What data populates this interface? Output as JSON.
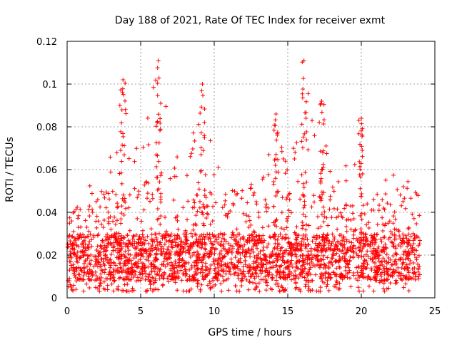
{
  "chart_data": {
    "type": "scatter",
    "title": "Day 188 of 2021, Rate Of TEC Index for receiver exmt",
    "xlabel": "GPS time / hours",
    "ylabel": "ROTI / TECUs",
    "xlim": [
      0,
      25
    ],
    "ylim": [
      0,
      0.12
    ],
    "xticks": [
      0,
      5,
      10,
      15,
      20,
      25
    ],
    "xtick_labels": [
      "0",
      "5",
      "10",
      "15",
      "20",
      "25"
    ],
    "yticks": [
      0,
      0.02,
      0.04,
      0.06,
      0.08,
      0.1,
      0.12
    ],
    "ytick_labels": [
      "0",
      "0.02",
      "0.04",
      "0.06",
      "0.08",
      "0.1",
      "0.12"
    ],
    "grid": true,
    "marker": "plus",
    "series": [
      {
        "name": "ROTI",
        "color": "#ff0000",
        "envelope_hours": [
          0,
          1,
          2,
          3,
          3.8,
          5,
          6.2,
          7,
          7.5,
          8,
          9,
          10,
          10.5,
          12,
          13,
          14.2,
          15,
          16,
          17,
          18,
          19,
          20,
          21,
          21.5,
          22.5,
          23.5,
          24
        ],
        "envelope_max": [
          0.042,
          0.045,
          0.065,
          0.08,
          0.102,
          0.07,
          0.111,
          0.085,
          0.075,
          0.06,
          0.1,
          0.07,
          0.062,
          0.055,
          0.052,
          0.086,
          0.06,
          0.111,
          0.092,
          0.06,
          0.065,
          0.084,
          0.062,
          0.06,
          0.06,
          0.06,
          0.05
        ],
        "typical_min": 0.003,
        "typical_range": [
          0.008,
          0.03
        ],
        "peaks": [
          {
            "x": 3.8,
            "y": 0.102
          },
          {
            "x": 6.2,
            "y": 0.111
          },
          {
            "x": 9.2,
            "y": 0.1
          },
          {
            "x": 14.2,
            "y": 0.086
          },
          {
            "x": 16.1,
            "y": 0.111
          },
          {
            "x": 17.3,
            "y": 0.092
          },
          {
            "x": 20.0,
            "y": 0.084
          }
        ]
      }
    ]
  }
}
